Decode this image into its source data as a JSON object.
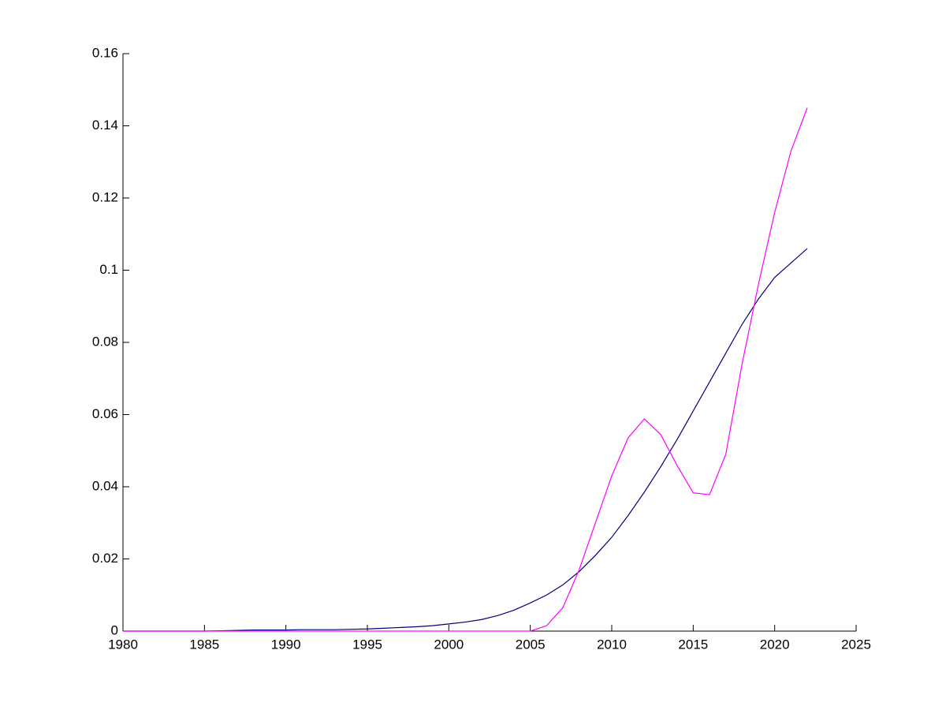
{
  "chart_data": {
    "type": "line",
    "x": [
      1980,
      1981,
      1982,
      1983,
      1984,
      1985,
      1986,
      1987,
      1988,
      1989,
      1990,
      1991,
      1992,
      1993,
      1994,
      1995,
      1996,
      1997,
      1998,
      1999,
      2000,
      2001,
      2002,
      2003,
      2004,
      2005,
      2006,
      2007,
      2008,
      2009,
      2010,
      2011,
      2012,
      2013,
      2014,
      2015,
      2016,
      2017,
      2018,
      2019,
      2020,
      2021,
      2022
    ],
    "series": [
      {
        "color": "#00007f",
        "values": [
          0,
          0,
          0,
          0,
          0,
          0,
          0.0001,
          0.0002,
          0.0003,
          0.0003,
          0.0003,
          0.0004,
          0.0004,
          0.0004,
          0.0005,
          0.0006,
          0.0008,
          0.001,
          0.0012,
          0.0015,
          0.002,
          0.0025,
          0.0032,
          0.0043,
          0.0058,
          0.0078,
          0.01,
          0.0128,
          0.0165,
          0.021,
          0.026,
          0.032,
          0.0385,
          0.0455,
          0.053,
          0.061,
          0.069,
          0.077,
          0.085,
          0.092,
          0.098,
          0.102,
          0.106
        ]
      },
      {
        "color": "#ff00ff",
        "values": [
          0,
          0,
          0,
          0,
          0,
          0,
          0,
          0,
          0,
          0,
          0,
          0,
          0,
          0,
          0,
          0,
          0,
          0,
          0,
          0,
          0,
          0,
          0,
          0,
          0,
          0,
          0.0015,
          0.0065,
          0.017,
          0.03,
          0.043,
          0.0535,
          0.0588,
          0.0545,
          0.046,
          0.0383,
          0.0378,
          0.049,
          0.074,
          0.096,
          0.116,
          0.133,
          0.145
        ]
      }
    ],
    "xlim": [
      1980,
      2025
    ],
    "xticks": [
      1980,
      1985,
      1990,
      1995,
      2000,
      2005,
      2010,
      2015,
      2020,
      2025
    ],
    "ylim": [
      0,
      0.16
    ],
    "yticks": [
      0,
      0.02,
      0.04,
      0.06,
      0.08,
      0.1,
      0.12,
      0.14,
      0.16
    ]
  }
}
